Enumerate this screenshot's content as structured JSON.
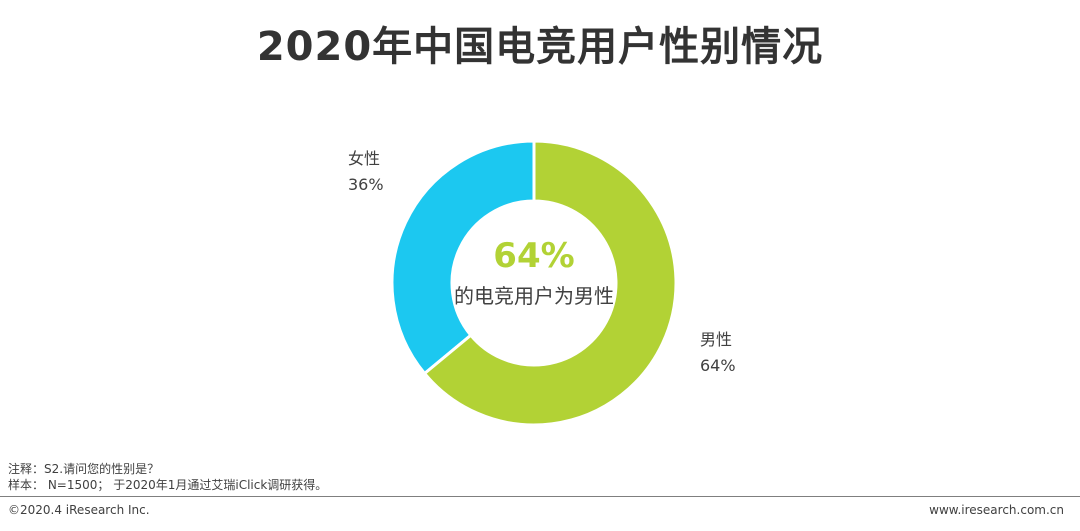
{
  "header": {
    "title": "2020年中国电竞用户性别情况"
  },
  "chart_data": {
    "type": "pie",
    "title": "2020年中国电竞用户性别情况",
    "slices": [
      {
        "name": "女性",
        "value": 36,
        "label": "36%",
        "color": "#1cc8f0"
      },
      {
        "name": "男性",
        "value": 64,
        "label": "64%",
        "color": "#b2d235"
      }
    ],
    "center_value": "64%",
    "center_caption": "的电竞用户为男性",
    "donut": true
  },
  "notes": {
    "line1": "注释：S2.请问您的性别是？",
    "line2": "样本： N=1500； 于2020年1月通过艾瑞iClick调研获得。"
  },
  "footer": {
    "copyright": "©2020.4 iResearch Inc.",
    "website": "www.iresearch.com.cn"
  }
}
